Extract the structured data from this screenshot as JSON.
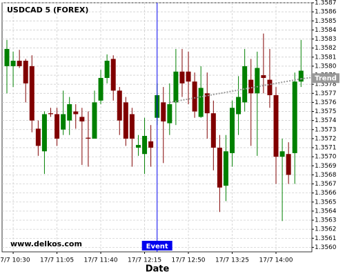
{
  "chart_data": {
    "type": "candlestick",
    "title": "USDCAD 5 (FOREX)",
    "watermark": "www.delkos.com",
    "x_label": "Date",
    "categories": [
      null,
      "17/7 10:30",
      null,
      null,
      null,
      null,
      null,
      null,
      "17/7 11:05",
      null,
      null,
      null,
      null,
      null,
      null,
      "17/7 11:40",
      null,
      null,
      null,
      null,
      null,
      null,
      "17/7 12:15",
      null,
      null,
      null,
      null,
      null,
      null,
      "17/7 12:50",
      null,
      null,
      null,
      null,
      null,
      null,
      "17/7 13:25",
      null,
      null,
      null,
      null,
      null,
      null,
      "17/7 14:00",
      null,
      null,
      null,
      null
    ],
    "open": [
      1.358,
      1.358,
      1.35806,
      1.35806,
      1.358,
      1.35731,
      1.35706,
      1.35748,
      1.35747,
      1.3573,
      1.3574,
      1.3575,
      1.35744,
      1.35721,
      1.3572,
      1.35762,
      1.35787,
      1.35808,
      1.35773,
      1.3576,
      1.35747,
      1.3571,
      1.35703,
      1.35717,
      1.35743,
      1.3576,
      1.35737,
      1.3576,
      1.35794,
      1.35794,
      1.35783,
      1.35744,
      1.3577,
      1.35748,
      1.3571,
      1.35668,
      1.35704,
      1.35747,
      1.3576,
      1.35785,
      1.3577,
      1.3579,
      1.35785,
      1.35768,
      1.357,
      1.35703,
      1.35704,
      1.35783
    ],
    "high": [
      1.35829,
      1.35816,
      1.35818,
      1.35808,
      1.35812,
      1.3574,
      1.3575,
      1.35754,
      1.35754,
      1.35773,
      1.35766,
      1.35758,
      1.35754,
      1.3575,
      1.35773,
      1.35796,
      1.35813,
      1.35812,
      1.35777,
      1.35766,
      1.35754,
      1.35724,
      1.35743,
      1.35735,
      1.35781,
      1.35777,
      1.35781,
      1.35819,
      1.35819,
      1.35816,
      1.35793,
      1.358,
      1.35793,
      1.35762,
      1.35724,
      1.35724,
      1.35762,
      1.35789,
      1.35819,
      1.35808,
      1.35816,
      1.35836,
      1.35819,
      1.35777,
      1.3572,
      1.35716,
      1.35793,
      1.35829
    ],
    "low": [
      1.3577,
      1.35777,
      1.35798,
      1.3576,
      1.35727,
      1.35701,
      1.35681,
      1.35744,
      1.35712,
      1.35724,
      1.35724,
      1.35731,
      1.35691,
      1.35689,
      1.3572,
      1.35758,
      1.35781,
      1.35762,
      1.35724,
      1.35712,
      1.35689,
      1.35701,
      1.35681,
      1.35689,
      1.35735,
      1.35693,
      1.35724,
      1.35735,
      1.35766,
      1.35758,
      1.35743,
      1.35743,
      1.3572,
      1.35685,
      1.35639,
      1.35651,
      1.35689,
      1.35724,
      1.3575,
      1.35712,
      1.35701,
      1.3577,
      1.35754,
      1.3567,
      1.35629,
      1.3567,
      1.3567,
      1.35777
    ],
    "close": [
      1.35819,
      1.35806,
      1.358,
      1.35781,
      1.3574,
      1.35712,
      1.35747,
      1.35747,
      1.3572,
      1.35747,
      1.35758,
      1.35747,
      1.35739,
      1.3572,
      1.3576,
      1.35787,
      1.35806,
      1.35773,
      1.3574,
      1.3572,
      1.3572,
      1.35713,
      1.35723,
      1.3571,
      1.35768,
      1.35739,
      1.35758,
      1.35794,
      1.35781,
      1.35783,
      1.3575,
      1.35776,
      1.35748,
      1.3571,
      1.35666,
      1.35706,
      1.35754,
      1.35766,
      1.358,
      1.3577,
      1.35798,
      1.35787,
      1.35768,
      1.357,
      1.35706,
      1.3568,
      1.35783,
      1.35795
    ],
    "up_color": "#008000",
    "down_color": "#800000",
    "ylim": [
      1.35595,
      1.3587
    ],
    "yticks": [
      {
        "value": 1.356,
        "label": "1.3560"
      },
      1.3561,
      1.3562,
      1.3563,
      1.3564,
      1.3565,
      1.3566,
      1.3567,
      1.3568,
      1.3569,
      {
        "value": 1.357,
        "label": "1.3570"
      },
      1.3571,
      1.3572,
      1.3573,
      1.3574,
      1.3575,
      1.3576,
      1.3577,
      1.3578,
      1.3579,
      {
        "value": 1.358,
        "label": "1.3580"
      },
      1.3581,
      1.3582,
      1.3583,
      1.3584,
      1.3585,
      1.3586,
      1.3587
    ],
    "grid": true,
    "trend": {
      "label": "Trend",
      "from": 26,
      "to": 47,
      "values": [
        1.3576,
        1.35786
      ],
      "color": "#999999"
    },
    "event": {
      "label": "Event",
      "index": 24,
      "color": "#0000ee"
    }
  }
}
